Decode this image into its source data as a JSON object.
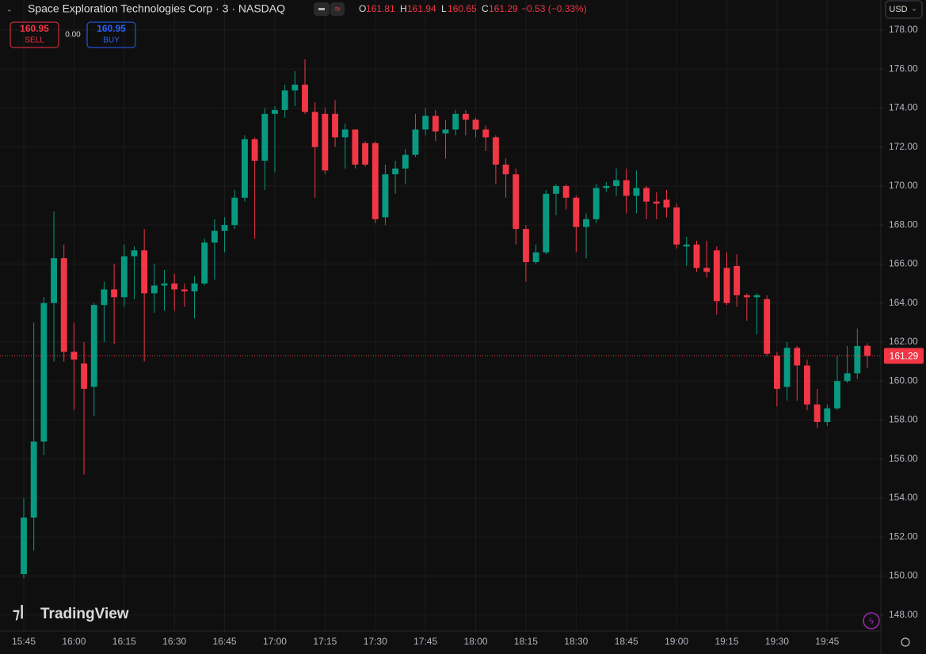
{
  "chart_data": {
    "type": "candlestick",
    "title": "Space Exploration Technologies Corp · 3 · NASDAQ",
    "ohlc_labels": [
      "O",
      "H",
      "L",
      "C"
    ],
    "change": "−0.53 (−0.33%)",
    "currency": "USD",
    "brand": "TradingView",
    "trade_panel": {
      "sell_price": "160.95",
      "sell_label": "SELL",
      "spread": "0.00",
      "buy_price": "160.95",
      "buy_label": "BUY"
    },
    "up_color": "#089981",
    "down_color": "#f23645",
    "grid": true,
    "categories": [
      "15:45",
      null,
      null,
      null,
      null,
      "16:00",
      null,
      null,
      null,
      null,
      "16:15",
      null,
      null,
      null,
      null,
      "16:30",
      null,
      null,
      null,
      null,
      "16:45",
      null,
      null,
      null,
      null,
      "17:00",
      null,
      null,
      null,
      null,
      "17:15",
      null,
      null,
      null,
      null,
      "17:30",
      null,
      null,
      null,
      null,
      "17:45",
      null,
      null,
      null,
      null,
      "18:00",
      null,
      null,
      null,
      null,
      "18:15",
      null,
      null,
      null,
      null,
      "18:30",
      null,
      null,
      null,
      null,
      "18:45",
      null,
      null,
      null,
      null,
      "19:00",
      null,
      null,
      null,
      null,
      "19:15",
      null,
      null,
      null,
      null,
      "19:30",
      null,
      null,
      null,
      null,
      "19:45",
      null,
      null,
      null,
      null
    ],
    "open": [
      150.1,
      153.0,
      156.9,
      164.0,
      166.3,
      161.5,
      160.9,
      159.7,
      163.9,
      164.7,
      164.3,
      166.4,
      166.7,
      164.5,
      164.9,
      165.0,
      164.7,
      164.6,
      165.0,
      167.1,
      167.7,
      168.0,
      169.4,
      172.4,
      171.3,
      173.7,
      173.9,
      174.9,
      175.2,
      173.8,
      173.7,
      173.7,
      172.5,
      172.9,
      172.2,
      172.2,
      168.4,
      170.6,
      170.9,
      171.6,
      172.9,
      173.6,
      172.7,
      172.9,
      173.7,
      173.4,
      172.9,
      172.5,
      171.1,
      170.6,
      167.8,
      166.1,
      166.6,
      169.6,
      170.0,
      169.4,
      167.9,
      168.3,
      169.9,
      170.0,
      170.3,
      169.5,
      169.9,
      169.2,
      169.3,
      168.9,
      166.9,
      167.0,
      165.8,
      166.7,
      165.8,
      165.9,
      164.4,
      164.3,
      164.2,
      161.3,
      159.7,
      161.7,
      160.8,
      158.8,
      157.9,
      158.6,
      160.0,
      160.4,
      161.81
    ],
    "high": [
      154.0,
      163.0,
      164.3,
      168.7,
      167.0,
      163.0,
      162.0,
      164.0,
      165.1,
      166.0,
      167.0,
      166.9,
      167.8,
      166.0,
      165.7,
      165.5,
      165.0,
      165.4,
      167.3,
      168.3,
      168.4,
      169.8,
      172.6,
      172.5,
      174.0,
      174.1,
      175.2,
      175.9,
      176.5,
      174.3,
      174.0,
      174.4,
      173.2,
      172.9,
      172.3,
      172.3,
      171.1,
      171.3,
      171.9,
      173.7,
      174.0,
      173.9,
      173.4,
      173.9,
      173.9,
      173.5,
      173.1,
      172.6,
      171.4,
      170.9,
      168.0,
      167.0,
      169.8,
      170.1,
      170.1,
      169.5,
      168.6,
      170.1,
      170.2,
      170.9,
      170.9,
      170.8,
      170.0,
      169.7,
      169.8,
      169.1,
      167.4,
      167.2,
      167.2,
      166.9,
      166.6,
      166.5,
      164.5,
      164.5,
      164.4,
      161.5,
      162.0,
      161.8,
      161.1,
      159.6,
      158.8,
      161.3,
      161.8,
      162.7,
      161.94
    ],
    "low": [
      149.9,
      151.3,
      156.2,
      161.0,
      161.0,
      158.5,
      155.2,
      158.2,
      162.0,
      161.9,
      163.8,
      164.2,
      161.0,
      163.5,
      163.6,
      163.6,
      163.8,
      163.2,
      164.9,
      165.2,
      166.6,
      167.8,
      169.2,
      167.3,
      169.8,
      170.7,
      173.5,
      174.1,
      173.7,
      169.4,
      170.6,
      172.0,
      170.9,
      170.9,
      171.0,
      168.1,
      168.0,
      169.6,
      170.1,
      171.5,
      172.6,
      172.3,
      171.4,
      172.6,
      172.6,
      172.5,
      171.8,
      170.1,
      169.4,
      167.0,
      165.1,
      166.0,
      166.5,
      168.5,
      168.8,
      166.6,
      166.3,
      168.1,
      169.7,
      169.5,
      168.6,
      168.6,
      168.3,
      168.3,
      168.4,
      166.8,
      165.9,
      165.6,
      165.3,
      163.4,
      163.9,
      163.8,
      163.1,
      162.4,
      161.3,
      158.7,
      159.0,
      159.0,
      158.5,
      157.6,
      157.7,
      158.5,
      159.9,
      160.1,
      160.65
    ],
    "close": [
      153.0,
      156.9,
      164.0,
      166.3,
      161.5,
      161.1,
      159.6,
      163.9,
      164.7,
      164.3,
      166.4,
      166.7,
      164.5,
      164.9,
      165.0,
      164.7,
      164.6,
      165.0,
      167.1,
      167.7,
      168.0,
      169.4,
      172.4,
      171.3,
      173.7,
      173.9,
      174.9,
      175.2,
      173.8,
      172.0,
      170.8,
      172.5,
      172.9,
      171.1,
      171.1,
      168.3,
      170.6,
      170.9,
      171.6,
      172.9,
      173.6,
      172.8,
      172.9,
      173.7,
      173.4,
      172.9,
      172.5,
      171.1,
      170.6,
      167.8,
      166.1,
      166.6,
      169.6,
      170.0,
      169.4,
      167.9,
      168.3,
      169.9,
      170.0,
      170.3,
      169.5,
      169.9,
      169.2,
      169.1,
      168.9,
      167.0,
      167.0,
      165.8,
      165.6,
      164.1,
      164.0,
      164.4,
      164.3,
      164.4,
      161.4,
      159.6,
      161.7,
      160.8,
      158.8,
      157.9,
      158.6,
      160.0,
      160.4,
      161.8,
      161.29
    ],
    "ylim": [
      147.18,
      179.54
    ],
    "yticks": [
      {
        "value": 148,
        "label": "148.00"
      },
      {
        "value": 150,
        "label": "150.00"
      },
      {
        "value": 152,
        "label": "152.00"
      },
      {
        "value": 154,
        "label": "154.00"
      },
      {
        "value": 156,
        "label": "156.00"
      },
      {
        "value": 158,
        "label": "158.00"
      },
      {
        "value": 160,
        "label": "160.00"
      },
      {
        "value": 162,
        "label": "162.00"
      },
      {
        "value": 164,
        "label": "164.00"
      },
      {
        "value": 166,
        "label": "166.00"
      },
      {
        "value": 168,
        "label": "168.00"
      },
      {
        "value": 170,
        "label": "170.00"
      },
      {
        "value": 172,
        "label": "172.00"
      },
      {
        "value": 174,
        "label": "174.00"
      },
      {
        "value": 176,
        "label": "176.00"
      },
      {
        "value": 178,
        "label": "178.00"
      }
    ]
  }
}
